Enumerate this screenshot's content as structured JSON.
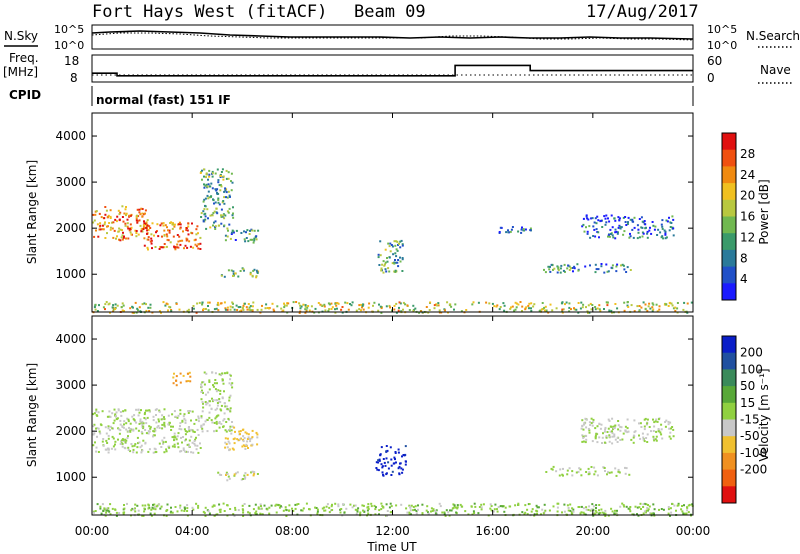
{
  "header": {
    "title": "Fort Hays West (fitACF)",
    "beam": "Beam 09",
    "date": "17/Aug/2017"
  },
  "strips": {
    "nsky_label": "N.Sky",
    "nsearch_label": "N.Search",
    "freq_label": "Freq.",
    "freq_unit": "[MHz]",
    "nave_label": "Nave",
    "cpid_label": "CPID",
    "cpid_text": "normal (fast) 151 IF",
    "noise_left_ticks": [
      "10^5",
      "10^0"
    ],
    "noise_right_ticks": [
      "10^5",
      "10^0"
    ],
    "freq_ticks": [
      "18",
      "8"
    ],
    "nave_ticks": [
      "60",
      "0"
    ],
    "freq_profile": {
      "times": [
        0,
        1,
        2,
        3,
        4,
        5,
        6,
        7,
        8,
        9,
        10,
        11,
        12,
        13,
        14,
        14.5,
        15,
        16,
        17,
        17.5,
        18,
        19,
        20,
        21,
        22,
        23,
        24
      ],
      "mhz": [
        11,
        10,
        10,
        10,
        10,
        10,
        10,
        10,
        10,
        10,
        10,
        10,
        10,
        10,
        10,
        14,
        14,
        14,
        14,
        12,
        12,
        12,
        12,
        12,
        12,
        12,
        12
      ]
    }
  },
  "chart_data": [
    {
      "type": "heatmap",
      "panel": "power",
      "ylabel": "Slant Range [km]",
      "xlabel": "Time UT",
      "xlim": [
        0,
        24
      ],
      "ylim": [
        180,
        4500
      ],
      "xticks": [
        "00:00",
        "04:00",
        "08:00",
        "12:00",
        "16:00",
        "20:00",
        "00:00"
      ],
      "yticks": [
        1000,
        2000,
        3000,
        4000
      ],
      "colorbar": {
        "label": "Power [dB]",
        "range": [
          0,
          32
        ],
        "ticks": [
          4,
          8,
          12,
          16,
          20,
          24,
          28
        ],
        "colors": [
          "#1a1aff",
          "#2050c8",
          "#2a7a9a",
          "#3a9a6a",
          "#70b850",
          "#b8c840",
          "#f0c020",
          "#f08a10",
          "#f05010",
          "#e01010"
        ]
      },
      "regions": [
        {
          "t0": 0.0,
          "t1": 2.2,
          "r0": 1750,
          "r1": 2500,
          "level": 24
        },
        {
          "t0": 2.0,
          "t1": 4.3,
          "r0": 1550,
          "r1": 2150,
          "level": 26
        },
        {
          "t0": 4.3,
          "t1": 5.6,
          "r0": 2000,
          "r1": 3300,
          "level": 12
        },
        {
          "t0": 5.2,
          "t1": 6.6,
          "r0": 1700,
          "r1": 2000,
          "level": 10
        },
        {
          "t0": 5.0,
          "t1": 6.6,
          "r0": 950,
          "r1": 1150,
          "level": 14
        },
        {
          "t0": 11.4,
          "t1": 12.4,
          "r0": 1050,
          "r1": 1750,
          "level": 12
        },
        {
          "t0": 16.0,
          "t1": 17.5,
          "r0": 1900,
          "r1": 2050,
          "level": 8
        },
        {
          "t0": 18.0,
          "t1": 21.5,
          "r0": 1050,
          "r1": 1250,
          "level": 10
        },
        {
          "t0": 19.5,
          "t1": 23.2,
          "r0": 1800,
          "r1": 2300,
          "level": 6
        },
        {
          "t0": 0.0,
          "t1": 24.0,
          "r0": 180,
          "r1": 420,
          "level": 18
        }
      ]
    },
    {
      "type": "heatmap",
      "panel": "velocity",
      "ylabel": "Slant Range [km]",
      "xlabel": "Time UT",
      "xlim": [
        0,
        24
      ],
      "ylim": [
        180,
        4500
      ],
      "xticks": [
        "00:00",
        "04:00",
        "08:00",
        "12:00",
        "16:00",
        "20:00",
        "00:00"
      ],
      "yticks": [
        1000,
        2000,
        3000,
        4000
      ],
      "colorbar": {
        "label": "Velocity [m s⁻¹]",
        "range": [
          -250,
          250
        ],
        "ticks": [
          200,
          100,
          50,
          15,
          -15,
          -50,
          -100,
          -200
        ],
        "tick_labels": [
          "200",
          "100",
          "50",
          "15",
          "-15",
          "-50",
          "-100",
          "-200"
        ],
        "colors": [
          "#0a1ec8",
          "#2050a0",
          "#3a8a5a",
          "#58a838",
          "#90d040",
          "#c8c8c8",
          "#f0c030",
          "#f09020",
          "#f06010",
          "#e01010"
        ]
      },
      "regions": [
        {
          "t0": 0.0,
          "t1": 4.3,
          "r0": 1550,
          "r1": 2500,
          "level": 0
        },
        {
          "t0": 4.3,
          "t1": 5.6,
          "r0": 2000,
          "r1": 3300,
          "level": 0
        },
        {
          "t0": 3.2,
          "t1": 4.0,
          "r0": 3000,
          "r1": 3300,
          "level": -100
        },
        {
          "t0": 5.2,
          "t1": 6.6,
          "r0": 1600,
          "r1": 2100,
          "level": -60
        },
        {
          "t0": 5.0,
          "t1": 6.6,
          "r0": 950,
          "r1": 1150,
          "level": -20
        },
        {
          "t0": 11.3,
          "t1": 12.5,
          "r0": 1050,
          "r1": 1700,
          "level": 230
        },
        {
          "t0": 18.0,
          "t1": 21.5,
          "r0": 1050,
          "r1": 1250,
          "level": 0
        },
        {
          "t0": 19.5,
          "t1": 23.2,
          "r0": 1750,
          "r1": 2300,
          "level": 0
        },
        {
          "t0": 0.0,
          "t1": 24.0,
          "r0": 180,
          "r1": 450,
          "level": 30
        }
      ]
    }
  ]
}
